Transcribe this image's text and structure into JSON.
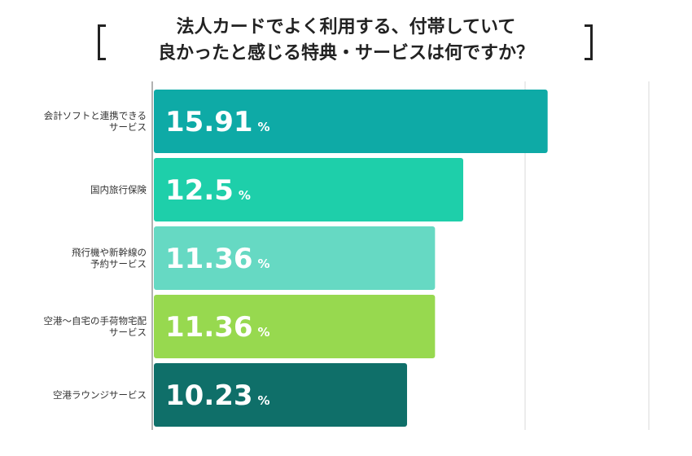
{
  "title": {
    "line1": "法人カードでよく利用する、付帯していて",
    "line2": "良かったと感じる特典・サービスは何ですか？"
  },
  "chart_data": {
    "type": "bar",
    "orientation": "horizontal",
    "categories": [
      [
        "会計ソフトと連携できる",
        "サービス"
      ],
      [
        "国内旅行保険"
      ],
      [
        "飛行機や新幹線の",
        "予約サービス"
      ],
      [
        "空港〜自宅の手荷物宅配",
        "サービス"
      ],
      [
        "空港ラウンジサービス"
      ]
    ],
    "values": [
      15.91,
      12.5,
      11.36,
      11.36,
      10.23
    ],
    "value_labels": [
      "15.91",
      "12.5",
      "11.36",
      "11.36",
      "10.23"
    ],
    "unit": "%",
    "colors": [
      "#0eaaa6",
      "#1ecfaa",
      "#66d9c3",
      "#97d94f",
      "#0f6f69"
    ],
    "xlim": [
      0,
      20
    ],
    "grid": true
  }
}
